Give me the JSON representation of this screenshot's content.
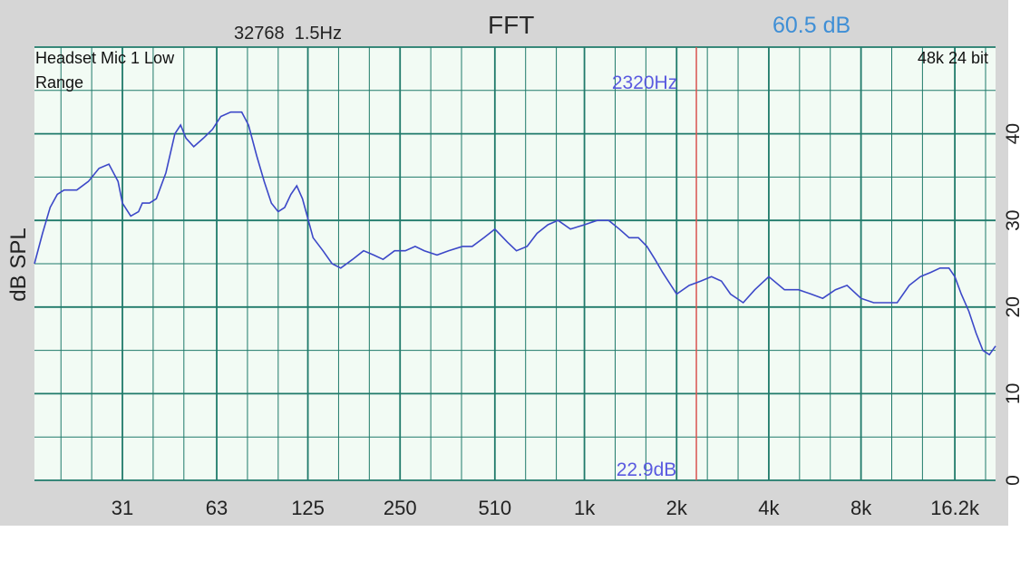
{
  "topbar": {
    "fft_size": "32768",
    "resolution": "1.5Hz",
    "title": "FFT",
    "level": "60.5 dB"
  },
  "device": {
    "input_line1": "Headset Mic 1 Low",
    "input_line2": "Range",
    "format": "48k 24 bit"
  },
  "cursor": {
    "freq_label": "2320Hz",
    "db_label": "22.9dB",
    "freq": 2320,
    "color": "#d9534f"
  },
  "colors": {
    "plot_background": "#f2fbf4",
    "major_grid": "#1f7a6a",
    "minor_grid": "#1f7a6a",
    "trace": "#3c48c8"
  },
  "chart_data": {
    "type": "line",
    "title": "FFT",
    "xlabel": "",
    "ylabel": "dB SPL",
    "x_scale": "log",
    "xlim": [
      16,
      22000
    ],
    "ylim": [
      0,
      50
    ],
    "x_ticks": [
      {
        "value": 31,
        "label": "31"
      },
      {
        "value": 63,
        "label": "63"
      },
      {
        "value": 125,
        "label": "125"
      },
      {
        "value": 250,
        "label": "250"
      },
      {
        "value": 510,
        "label": "510"
      },
      {
        "value": 1000,
        "label": "1k"
      },
      {
        "value": 2000,
        "label": "2k"
      },
      {
        "value": 4000,
        "label": "4k"
      },
      {
        "value": 8000,
        "label": "8k"
      },
      {
        "value": 16200,
        "label": "16.2k"
      }
    ],
    "y_ticks": [
      {
        "value": 0,
        "label": "0"
      },
      {
        "value": 10,
        "label": "10"
      },
      {
        "value": 20,
        "label": "20"
      },
      {
        "value": 30,
        "label": "30"
      },
      {
        "value": 40,
        "label": "40"
      }
    ],
    "grid": true,
    "series": [
      {
        "x": [
          16,
          17,
          18,
          19,
          20,
          21,
          22,
          24,
          26,
          28,
          30,
          31,
          33,
          35,
          36,
          38,
          40,
          43,
          46,
          48,
          50,
          53,
          57,
          61,
          65,
          70,
          76,
          80,
          85,
          90,
          95,
          100,
          105,
          110,
          115,
          120,
          130,
          140,
          150,
          160,
          175,
          190,
          205,
          220,
          240,
          260,
          280,
          300,
          330,
          360,
          400,
          430,
          470,
          510,
          560,
          600,
          650,
          700,
          760,
          820,
          900,
          1000,
          1100,
          1200,
          1300,
          1400,
          1500,
          1600,
          1700,
          1800,
          2000,
          2200,
          2400,
          2600,
          2800,
          3000,
          3300,
          3600,
          4000,
          4500,
          5000,
          5500,
          6000,
          6600,
          7200,
          8000,
          8800,
          9600,
          10500,
          11500,
          12500,
          13500,
          14500,
          15500,
          16200,
          17000,
          18000,
          19000,
          20000,
          21000,
          22000
        ],
        "values": [
          25.0,
          28.5,
          31.5,
          33.0,
          33.5,
          33.5,
          33.5,
          34.5,
          36.0,
          36.5,
          34.5,
          32.0,
          30.5,
          31.0,
          32.0,
          32.0,
          32.5,
          35.5,
          40.0,
          41.0,
          39.5,
          38.5,
          39.5,
          40.5,
          42.0,
          42.5,
          42.5,
          41.0,
          37.5,
          34.5,
          32.0,
          31.0,
          31.5,
          33.0,
          34.0,
          32.5,
          28.0,
          26.5,
          25.0,
          24.5,
          25.5,
          26.5,
          26.0,
          25.5,
          26.5,
          26.5,
          27.0,
          26.5,
          26.0,
          26.5,
          27.0,
          27.0,
          28.0,
          29.0,
          27.5,
          26.5,
          27.0,
          28.5,
          29.5,
          30.0,
          29.0,
          29.5,
          30.0,
          30.0,
          29.0,
          28.0,
          28.0,
          27.0,
          25.5,
          24.0,
          21.5,
          22.5,
          23.0,
          23.5,
          23.0,
          21.5,
          20.5,
          22.0,
          23.5,
          22.0,
          22.0,
          21.5,
          21.0,
          22.0,
          22.5,
          21.0,
          20.5,
          20.5,
          20.5,
          22.5,
          23.5,
          24.0,
          24.5,
          24.5,
          23.5,
          21.5,
          19.5,
          17.0,
          15.0,
          14.5,
          15.5
        ]
      }
    ]
  }
}
